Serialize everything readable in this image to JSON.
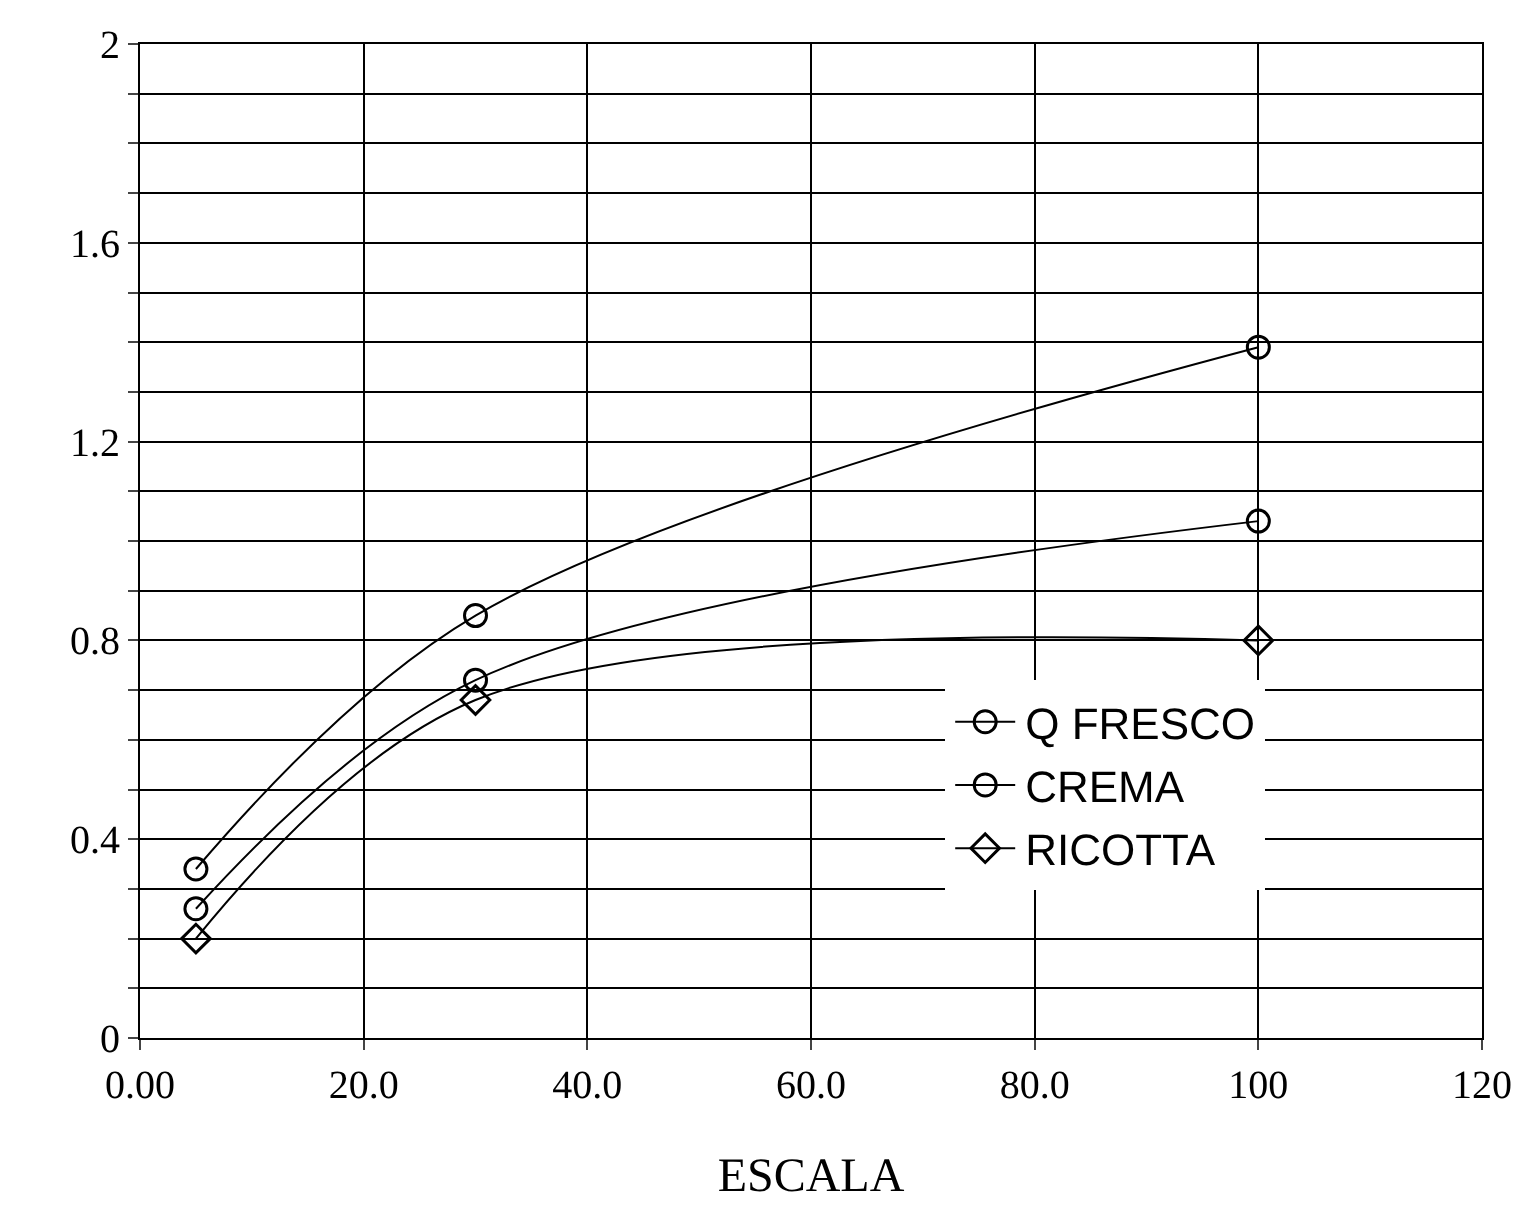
{
  "chart_data": {
    "type": "line",
    "xlabel": "ESCALA",
    "x": [
      5,
      30,
      100
    ],
    "series": [
      {
        "name": "Q FRESCO",
        "color": "#000000",
        "marker": "circle",
        "values": [
          0.34,
          0.85,
          1.39
        ]
      },
      {
        "name": "CREMA",
        "color": "#000000",
        "marker": "circle",
        "values": [
          0.26,
          0.72,
          1.04
        ]
      },
      {
        "name": "RICOTTA",
        "color": "#000000",
        "marker": "diamond",
        "values": [
          0.2,
          0.68,
          0.8
        ]
      }
    ],
    "xlim": [
      0,
      120
    ],
    "xticks": [
      {
        "value": 0,
        "label": "0.00"
      },
      {
        "value": 20,
        "label": "20.0"
      },
      {
        "value": 40,
        "label": "40.0"
      },
      {
        "value": 60,
        "label": "60.0"
      },
      {
        "value": 80,
        "label": "80.0"
      },
      100,
      120
    ],
    "ylim": [
      0,
      2
    ],
    "yticks": [
      0,
      {
        "value": 0.1,
        "label": null
      },
      {
        "value": 0.2,
        "label": null
      },
      {
        "value": 0.3,
        "label": null
      },
      0.4,
      {
        "value": 0.5,
        "label": null
      },
      {
        "value": 0.6,
        "label": null
      },
      {
        "value": 0.7,
        "label": null
      },
      0.8,
      {
        "value": 0.9,
        "label": null
      },
      {
        "value": 1.0,
        "label": null
      },
      {
        "value": 1.1,
        "label": null
      },
      1.2,
      {
        "value": 1.3,
        "label": null
      },
      {
        "value": 1.4,
        "label": null
      },
      {
        "value": 1.5,
        "label": null
      },
      1.6,
      {
        "value": 1.7,
        "label": null
      },
      {
        "value": 1.8,
        "label": null
      },
      {
        "value": 1.9,
        "label": null
      },
      2
    ],
    "grid": true,
    "legend": "right",
    "line_style": "solid"
  }
}
